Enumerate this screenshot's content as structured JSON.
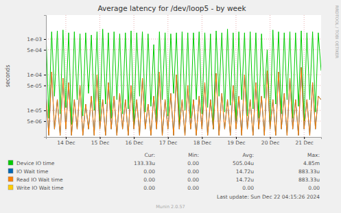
{
  "chart_data": {
    "type": "line",
    "title": "Average latency for /dev/loop5 - by week",
    "y_label": "seconds",
    "watermark": "RRDTOOL / TOBI OETIKER",
    "log": "y",
    "grid": true,
    "ylim": [
      1.8e-06,
      0.0047
    ],
    "yticks": [
      {
        "value": 5e-06,
        "label": "5e-06"
      },
      {
        "value": 1e-05,
        "label": "1e-05"
      },
      {
        "value": 5e-05,
        "label": "5e-05"
      },
      {
        "value": 0.0001,
        "label": "1e-04"
      },
      {
        "value": 0.0005,
        "label": "5e-04"
      },
      {
        "value": 0.001,
        "label": "1e-03"
      }
    ],
    "categories": [
      null,
      null,
      null,
      null,
      null,
      null,
      null,
      "14 Dec",
      null,
      null,
      null,
      null,
      null,
      null,
      null,
      null,
      null,
      null,
      null,
      "15 Dec",
      null,
      null,
      null,
      null,
      null,
      null,
      null,
      null,
      null,
      null,
      null,
      "16 Dec",
      null,
      null,
      null,
      null,
      null,
      null,
      null,
      null,
      null,
      null,
      null,
      "17 Dec",
      null,
      null,
      null,
      null,
      null,
      null,
      null,
      null,
      null,
      null,
      null,
      "18 Dec",
      null,
      null,
      null,
      null,
      null,
      null,
      null,
      null,
      null,
      null,
      null,
      "19 Dec",
      null,
      null,
      null,
      null,
      null,
      null,
      null,
      null,
      null,
      null,
      null,
      "20 Dec",
      null,
      null,
      null,
      null,
      null,
      null,
      null,
      null,
      null,
      null,
      null,
      "21 Dec",
      null,
      null,
      null,
      null,
      null,
      null
    ],
    "stats_header": [
      "Cur:",
      "Min:",
      "Avg:",
      "Max:"
    ],
    "series": [
      {
        "name": "Device IO time",
        "color": "#00cc00",
        "stats": [
          "133.33u",
          "0.00",
          "505.04u",
          "4.85m"
        ],
        "values": [
          0.0014,
          6e-06,
          0.0016,
          2.5e-05,
          0.0017,
          8e-06,
          0.0018,
          1.2e-05,
          0.0015,
          4e-06,
          0.0016,
          2e-05,
          0.0014,
          7e-06,
          0.0015,
          3e-05,
          0.0013,
          1e-05,
          0.0016,
          5e-06,
          0.0019,
          1.5e-05,
          0.0015,
          6e-06,
          0.0016,
          2e-05,
          0.0014,
          8e-06,
          0.0015,
          1.1e-05,
          0.0017,
          4e-06,
          0.0015,
          2.5e-05,
          0.0016,
          9e-06,
          0.0014,
          1.3e-05,
          0.0007,
          5e-06,
          0.0016,
          2e-05,
          0.0015,
          7e-06,
          0.0014,
          3e-05,
          0.0015,
          4e-06,
          0.0016,
          1e-05,
          0.0015,
          6e-06,
          0.0015,
          2e-05,
          0.0016,
          8e-06,
          0.0015,
          1.2e-05,
          0.0014,
          3e-06,
          0.0017,
          2.5e-05,
          0.0015,
          9e-06,
          0.0019,
          1.4e-05,
          0.0015,
          5e-06,
          0.0016,
          2e-05,
          0.0015,
          7e-06,
          0.0016,
          1.1e-05,
          0.0015,
          6e-06,
          0.0014,
          2.2e-05,
          0.0005,
          4e-06,
          0.0018,
          1.5e-05,
          0.0016,
          8e-06,
          0.0015,
          2e-05,
          0.0016,
          6e-06,
          0.0015,
          1.3e-05,
          0.0017,
          5e-06,
          0.0015,
          2e-05,
          0.0016,
          9e-06,
          0.0015,
          0.00013
        ]
      },
      {
        "name": "IO Wait time",
        "color": "#0066b3",
        "stats": [
          "0.00",
          "0.00",
          "14.72u",
          "883.33u"
        ],
        "values": [
          3e-05,
          2e-06,
          0.00012,
          3e-06,
          2e-05,
          2e-06,
          8e-05,
          3e-06,
          6e-05,
          2e-06,
          2e-05,
          3e-06,
          5e-05,
          2e-06,
          1.5e-05,
          3e-06,
          2.5e-05,
          2e-06,
          0.0001,
          3e-06,
          2e-05,
          2e-06,
          6e-05,
          3e-06,
          2.5e-05,
          2e-06,
          3e-05,
          3e-06,
          2e-05,
          2e-06,
          5e-05,
          3e-06,
          2e-05,
          2e-06,
          8e-05,
          3e-06,
          1.5e-05,
          2e-06,
          2.5e-05,
          3e-06,
          0.00012,
          2e-06,
          2e-05,
          3e-06,
          3e-05,
          2e-06,
          0.0001,
          3e-06,
          2e-05,
          2e-06,
          5e-05,
          3e-06,
          2e-05,
          2e-06,
          2.5e-05,
          3e-06,
          6e-05,
          2e-06,
          2e-05,
          3e-06,
          0.00011,
          2e-06,
          3e-05,
          3e-06,
          2e-05,
          2e-06,
          5e-05,
          3e-06,
          2.5e-05,
          2e-06,
          0.0001,
          3e-06,
          2e-05,
          2e-06,
          6e-05,
          3e-06,
          2.5e-05,
          2e-06,
          0.00013,
          3e-06,
          2e-05,
          2e-06,
          0.00012,
          3e-06,
          3e-05,
          2e-06,
          8e-05,
          3e-06,
          2e-05,
          2e-06,
          0.00016,
          3e-06,
          2e-05,
          2e-06,
          6e-05,
          3e-06,
          2.5e-05,
          2e-05
        ]
      },
      {
        "name": "Read IO Wait time",
        "color": "#ff8000",
        "stats": [
          "0.00",
          "0.00",
          "14.72u",
          "883.33u"
        ],
        "values": [
          3e-05,
          2e-06,
          0.00012,
          3e-06,
          2e-05,
          2e-06,
          8e-05,
          3e-06,
          6e-05,
          2e-06,
          2e-05,
          3e-06,
          5e-05,
          2e-06,
          1.5e-05,
          3e-06,
          2.5e-05,
          2e-06,
          0.0001,
          3e-06,
          2e-05,
          2e-06,
          6e-05,
          3e-06,
          2.5e-05,
          2e-06,
          3e-05,
          3e-06,
          2e-05,
          2e-06,
          5e-05,
          3e-06,
          2e-05,
          2e-06,
          8e-05,
          3e-06,
          1.5e-05,
          2e-06,
          2.5e-05,
          3e-06,
          0.00012,
          2e-06,
          2e-05,
          3e-06,
          3e-05,
          2e-06,
          0.0001,
          3e-06,
          2e-05,
          2e-06,
          5e-05,
          3e-06,
          2e-05,
          2e-06,
          2.5e-05,
          3e-06,
          6e-05,
          2e-06,
          2e-05,
          3e-06,
          0.00011,
          2e-06,
          3e-05,
          3e-06,
          2e-05,
          2e-06,
          5e-05,
          3e-06,
          2.5e-05,
          2e-06,
          0.0001,
          3e-06,
          2e-05,
          2e-06,
          6e-05,
          3e-06,
          2.5e-05,
          2e-06,
          0.00013,
          3e-06,
          2e-05,
          2e-06,
          0.00012,
          3e-06,
          3e-05,
          2e-06,
          8e-05,
          3e-06,
          2e-05,
          2e-06,
          0.00016,
          3e-06,
          2e-05,
          2e-06,
          6e-05,
          3e-06,
          2.5e-05,
          2e-05
        ]
      },
      {
        "name": "Write IO Wait time",
        "color": "#ffcc00",
        "stats": [
          "0.00",
          "0.00",
          "0.00",
          "0.00"
        ],
        "values": [
          null,
          null,
          null,
          null,
          null,
          null,
          null,
          null,
          null,
          null,
          null,
          null,
          null,
          null,
          null,
          null,
          null,
          null,
          null,
          null,
          null,
          null,
          null,
          null,
          null,
          null,
          null,
          null,
          null,
          null,
          null,
          null,
          null,
          null,
          null,
          null,
          null,
          null,
          null,
          null,
          null,
          null,
          null,
          null,
          null,
          null,
          null,
          null,
          null,
          null,
          null,
          null,
          null,
          null,
          null,
          null,
          null,
          null,
          null,
          null,
          null,
          null,
          null,
          null,
          null,
          null,
          null,
          null,
          null,
          null,
          null,
          null,
          null,
          null,
          null,
          null,
          null,
          null,
          null,
          null,
          null,
          null,
          null,
          null,
          null,
          null,
          null,
          null,
          null,
          null,
          null,
          null,
          null,
          null,
          null,
          null,
          null,
          null
        ]
      }
    ],
    "last_update": "Last update: Sun Dec 22 04:15:26 2024",
    "footer": "Munin 2.0.57"
  }
}
